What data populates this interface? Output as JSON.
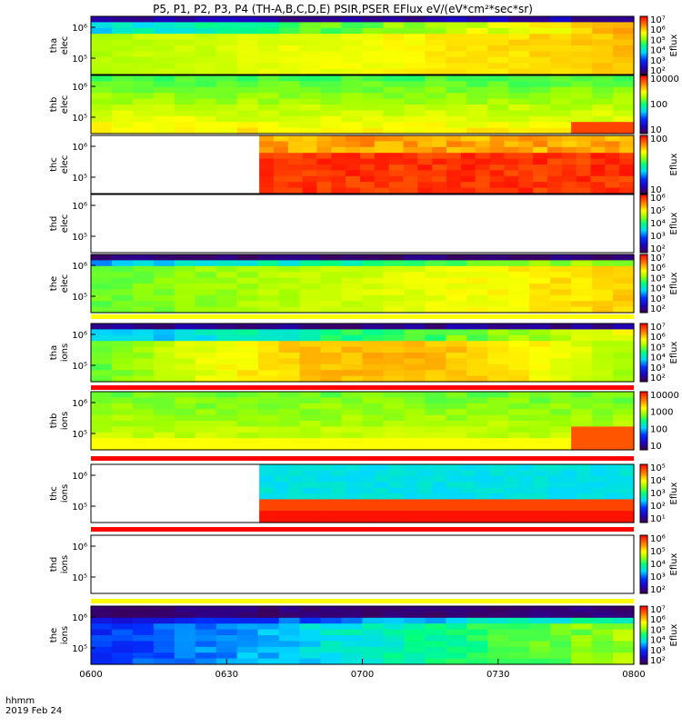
{
  "title": "P5, P1, P2, P3, P4 (TH-A,B,C,D,E) PSIR,PSER EFlux eV/(eV*cm²*sec*sr)",
  "footer": {
    "time_label": "hhmm",
    "date_label": "2019 Feb 24"
  },
  "colors": {
    "yellow": "#ffff00",
    "green": "#33dd33",
    "red": "#ff0000",
    "darkred": "#b00000",
    "blue": "#0000ff",
    "cyan": "#00ffff",
    "orange": "#ff9900",
    "black": "#000000"
  },
  "chart_data": {
    "type": "heatmap",
    "x_ticks": [
      "0600",
      "0630",
      "0700",
      "0730",
      "0800"
    ],
    "xlim": [
      "0600",
      "0800"
    ],
    "colorbar_label": "Eflux",
    "panels": [
      {
        "name": "panel-tha-elec",
        "probe": "tha",
        "species": "elec",
        "y_ticks": [
          "10⁵",
          "10⁶"
        ],
        "colorbar_ticks": [
          "10²",
          "10³",
          "10⁴",
          "10⁵",
          "10⁶",
          "10⁷"
        ],
        "colorbar_label": "Eflux",
        "data_start": 0.0
      },
      {
        "name": "panel-thb-elec",
        "probe": "thb",
        "species": "elec",
        "y_ticks": [
          "10⁵",
          "10⁶"
        ],
        "colorbar_ticks": [
          "10",
          "100",
          "10000"
        ],
        "colorbar_label": "",
        "data_start": 0.0
      },
      {
        "name": "panel-thc-elec",
        "probe": "thc",
        "species": "elec",
        "y_ticks": [
          "10⁵",
          "10⁶"
        ],
        "colorbar_ticks": [
          "10",
          "100"
        ],
        "colorbar_label": "Eflux",
        "data_start": 0.31
      },
      {
        "name": "panel-thd-elec",
        "probe": "thd",
        "species": "elec",
        "y_ticks": [
          "10⁵",
          "10⁶"
        ],
        "colorbar_ticks": [
          "10²",
          "10³",
          "10⁴",
          "10⁵",
          "10⁶"
        ],
        "colorbar_label": "Eflux",
        "data_start": null
      },
      {
        "name": "panel-the-elec",
        "probe": "the",
        "species": "elec",
        "y_ticks": [
          "10⁵",
          "10⁶"
        ],
        "colorbar_ticks": [
          "10²",
          "10³",
          "10⁴",
          "10⁵",
          "10⁶",
          "10⁷"
        ],
        "colorbar_label": "Eflux",
        "data_start": 0.0
      },
      {
        "name": "panel-tha-ions",
        "probe": "tha",
        "species": "ions",
        "y_ticks": [
          "10⁵",
          "10⁶"
        ],
        "colorbar_ticks": [
          "10²",
          "10³",
          "10⁴",
          "10⁵",
          "10⁶",
          "10⁷"
        ],
        "colorbar_label": "Eflux",
        "data_start": 0.0
      },
      {
        "name": "panel-thb-ions",
        "probe": "thb",
        "species": "ions",
        "y_ticks": [
          "10⁵",
          "10⁶"
        ],
        "colorbar_ticks": [
          "10",
          "100",
          "1000",
          "10000"
        ],
        "colorbar_label": "",
        "data_start": 0.0
      },
      {
        "name": "panel-thc-ions",
        "probe": "thc",
        "species": "ions",
        "y_ticks": [
          "10⁵",
          "10⁶"
        ],
        "colorbar_ticks": [
          "10¹",
          "10²",
          "10³",
          "10⁴",
          "10⁵"
        ],
        "colorbar_label": "Eflux",
        "data_start": 0.31
      },
      {
        "name": "panel-thd-ions",
        "probe": "thd",
        "species": "ions",
        "y_ticks": [
          "10⁵",
          "10⁶"
        ],
        "colorbar_ticks": [
          "10²",
          "10³",
          "10⁴",
          "10⁵",
          "10⁶"
        ],
        "colorbar_label": "Eflux",
        "data_start": null
      },
      {
        "name": "panel-the-ions",
        "probe": "the",
        "species": "ions",
        "y_ticks": [
          "10⁵",
          "10⁶"
        ],
        "colorbar_ticks": [
          "10²",
          "10³",
          "10⁴",
          "10⁵",
          "10⁶",
          "10⁷"
        ],
        "colorbar_label": "Eflux",
        "data_start": 0.0
      }
    ]
  }
}
